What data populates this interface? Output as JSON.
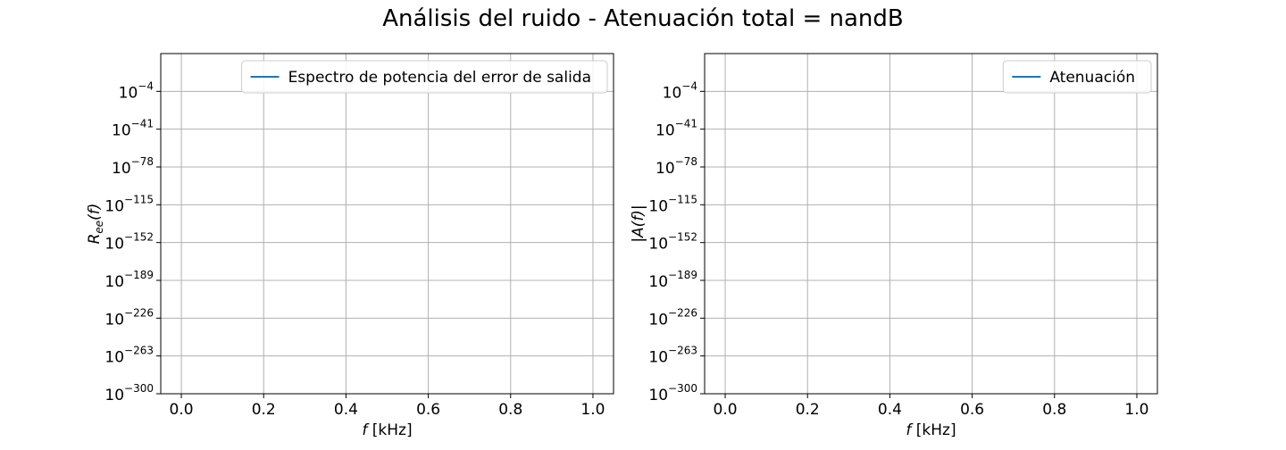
{
  "figure": {
    "suptitle": "Análisis del ruido - Atenuación total = nandB"
  },
  "chart_data": [
    {
      "type": "line",
      "title": "",
      "xlabel": "f [kHz]",
      "ylabel": "R_ee(f)",
      "ylabel_parts": {
        "base": "R",
        "sub": "ee",
        "arg": "(f)"
      },
      "xlabel_parts": {
        "var": "f",
        "unit": " [kHz]"
      },
      "xscale": "linear",
      "yscale": "log",
      "xlim": [
        -0.05,
        1.05
      ],
      "ylim_exponents": [
        -300,
        33
      ],
      "x_ticks": [
        0.0,
        0.2,
        0.4,
        0.6,
        0.8,
        1.0
      ],
      "x_tick_labels": [
        "0.0",
        "0.2",
        "0.4",
        "0.6",
        "0.8",
        "1.0"
      ],
      "y_tick_exponents": [
        -4,
        -41,
        -78,
        -115,
        -152,
        -189,
        -226,
        -263,
        -300
      ],
      "grid": true,
      "legend_position": "top-right",
      "series": [
        {
          "name": "Espectro de potencia del error de salida",
          "color": "#1f77b4",
          "x": [],
          "y": []
        }
      ]
    },
    {
      "type": "line",
      "title": "",
      "xlabel": "f [kHz]",
      "ylabel": "|A(f)|",
      "ylabel_parts": {
        "base": "|A(f)|",
        "sub": "",
        "arg": ""
      },
      "xlabel_parts": {
        "var": "f",
        "unit": " [kHz]"
      },
      "xscale": "linear",
      "yscale": "log",
      "xlim": [
        -0.05,
        1.05
      ],
      "ylim_exponents": [
        -300,
        33
      ],
      "x_ticks": [
        0.0,
        0.2,
        0.4,
        0.6,
        0.8,
        1.0
      ],
      "x_tick_labels": [
        "0.0",
        "0.2",
        "0.4",
        "0.6",
        "0.8",
        "1.0"
      ],
      "y_tick_exponents": [
        -4,
        -41,
        -78,
        -115,
        -152,
        -189,
        -226,
        -263,
        -300
      ],
      "grid": true,
      "legend_position": "top-right",
      "series": [
        {
          "name": "Atenuación",
          "color": "#1f77b4",
          "x": [],
          "y": []
        }
      ]
    }
  ]
}
